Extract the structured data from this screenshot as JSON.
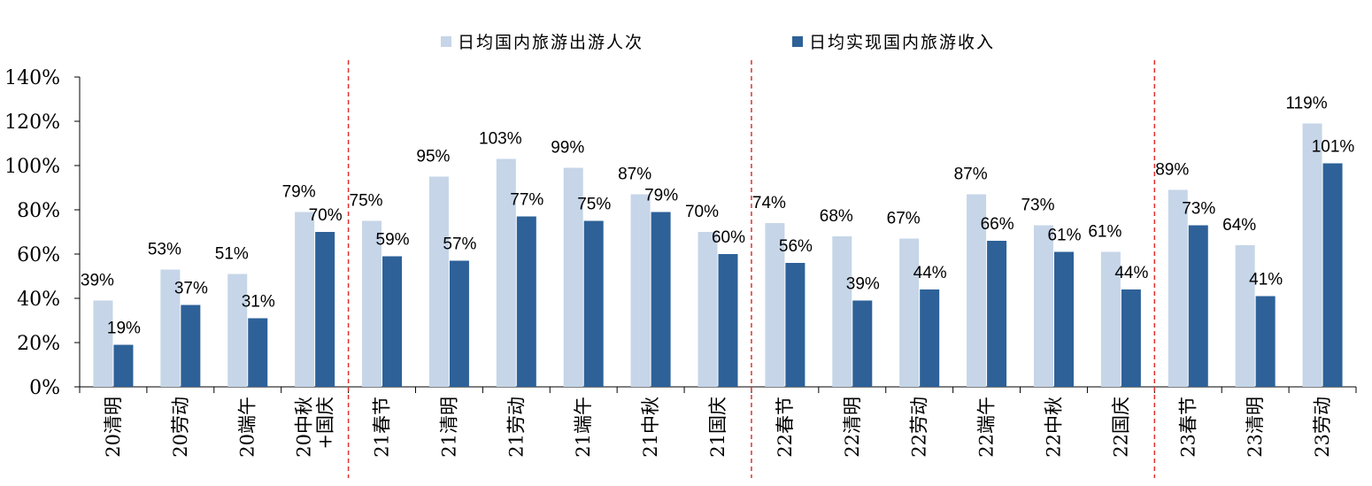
{
  "chart_data": {
    "type": "bar",
    "title": "",
    "xlabel": "",
    "ylabel": "",
    "ylim": [
      0,
      140
    ],
    "yticks": [
      "0%",
      "20%",
      "40%",
      "60%",
      "80%",
      "100%",
      "120%",
      "140%"
    ],
    "grid": false,
    "legend_position": "top",
    "categories": [
      [
        "20清明"
      ],
      [
        "20劳动"
      ],
      [
        "20端午"
      ],
      [
        "20中秋",
        "+国庆"
      ],
      [
        "21春节"
      ],
      [
        "21清明"
      ],
      [
        "21劳动"
      ],
      [
        "21端午"
      ],
      [
        "21中秋"
      ],
      [
        "21国庆"
      ],
      [
        "22春节"
      ],
      [
        "22清明"
      ],
      [
        "22劳动"
      ],
      [
        "22端午"
      ],
      [
        "22中秋"
      ],
      [
        "22国庆"
      ],
      [
        "23春节"
      ],
      [
        "23清明"
      ],
      [
        "23劳动"
      ]
    ],
    "series": [
      {
        "name": "日均国内旅游出游人次",
        "color": "#c6d5e8",
        "values": [
          39,
          53,
          51,
          79,
          75,
          95,
          103,
          99,
          87,
          70,
          74,
          68,
          67,
          87,
          73,
          61,
          89,
          64,
          119
        ],
        "labels": [
          "39%",
          "53%",
          "51%",
          "79%",
          "75%",
          "95%",
          "103%",
          "99%",
          "87%",
          "70%",
          "74%",
          "68%",
          "67%",
          "87%",
          "73%",
          "61%",
          "89%",
          "64%",
          "119%"
        ]
      },
      {
        "name": "日均实现国内旅游收入",
        "color": "#2d6198",
        "values": [
          19,
          37,
          31,
          70,
          59,
          57,
          77,
          75,
          79,
          60,
          56,
          39,
          44,
          66,
          61,
          44,
          73,
          41,
          101
        ],
        "labels": [
          "19%",
          "37%",
          "31%",
          "70%",
          "59%",
          "57%",
          "77%",
          "75%",
          "79%",
          "60%",
          "56%",
          "39%",
          "44%",
          "66%",
          "61%",
          "44%",
          "73%",
          "41%",
          "101%"
        ]
      }
    ],
    "dividers_after_category_index": [
      3,
      9,
      15
    ],
    "divider_color": "#e03030"
  }
}
